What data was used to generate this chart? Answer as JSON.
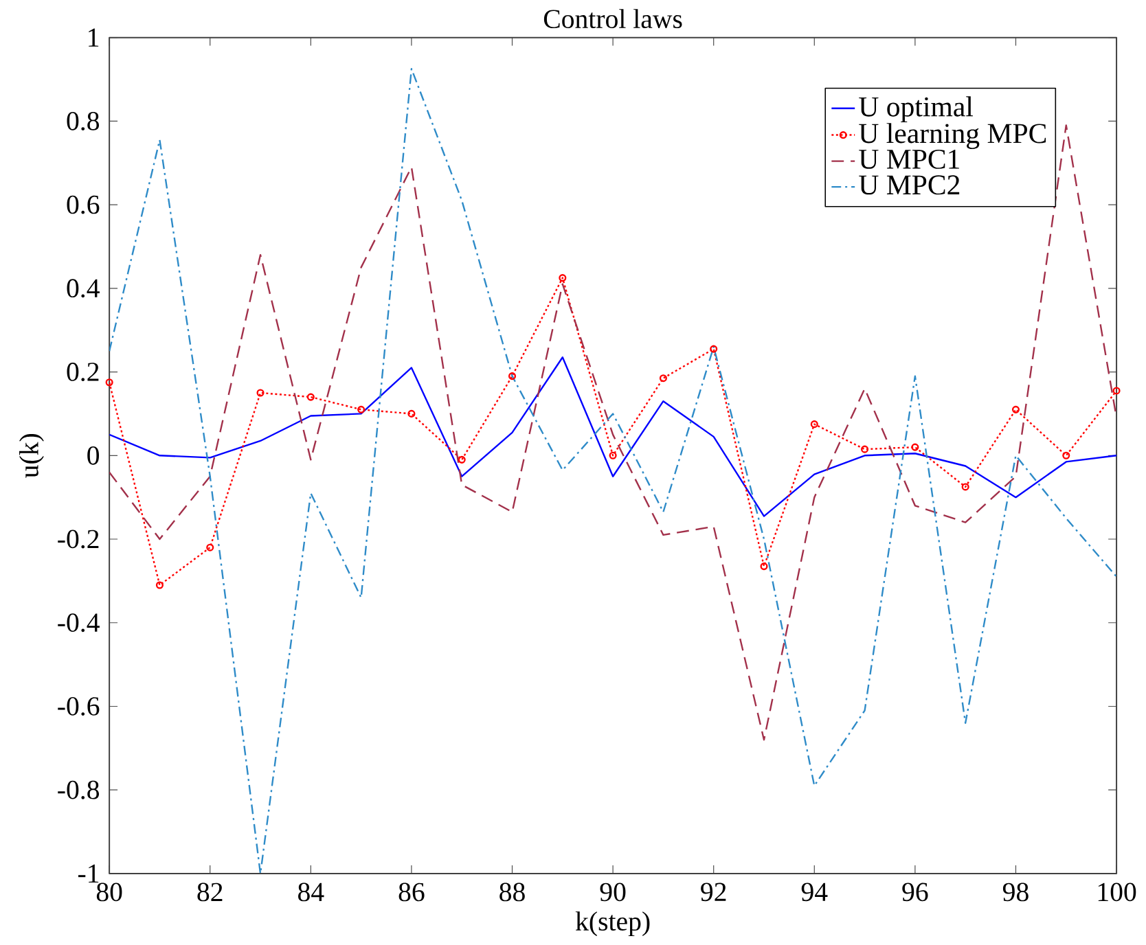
{
  "chart_data": {
    "type": "line",
    "title": "Control laws",
    "xlabel": "k(step)",
    "ylabel": "u(k)",
    "x": [
      80,
      81,
      82,
      83,
      84,
      85,
      86,
      87,
      88,
      89,
      90,
      91,
      92,
      93,
      94,
      95,
      96,
      97,
      98,
      99,
      100
    ],
    "series": [
      {
        "name": "U optimal",
        "color": "#0000ff",
        "line_style": "solid",
        "marker": "none",
        "values": [
          0.05,
          0.0,
          -0.005,
          0.035,
          0.095,
          0.1,
          0.21,
          -0.05,
          0.055,
          0.235,
          -0.05,
          0.13,
          0.045,
          -0.145,
          -0.045,
          0.0,
          0.005,
          -0.025,
          -0.1,
          -0.015,
          0.0
        ]
      },
      {
        "name": "U learning MPC",
        "color": "#ff0000",
        "line_style": "dotted",
        "marker": "circle",
        "values": [
          0.175,
          -0.31,
          -0.22,
          0.15,
          0.14,
          0.11,
          0.1,
          -0.01,
          0.19,
          0.425,
          0.0,
          0.185,
          0.255,
          -0.265,
          0.075,
          0.015,
          0.02,
          -0.075,
          0.11,
          0.0,
          0.155
        ]
      },
      {
        "name": "U MPC1",
        "color": "#a2304a",
        "line_style": "dashed",
        "marker": "none",
        "values": [
          -0.04,
          -0.2,
          -0.05,
          0.48,
          -0.01,
          0.45,
          0.69,
          -0.07,
          -0.135,
          0.41,
          0.05,
          -0.19,
          -0.17,
          -0.68,
          -0.1,
          0.16,
          -0.12,
          -0.16,
          -0.05,
          0.79,
          0.09
        ]
      },
      {
        "name": "U MPC2",
        "color": "#2e8bc8",
        "line_style": "dashdot",
        "marker": "none",
        "values": [
          0.25,
          0.755,
          -0.05,
          -1.0,
          -0.09,
          -0.34,
          0.925,
          0.61,
          0.19,
          -0.035,
          0.1,
          -0.135,
          0.26,
          -0.2,
          -0.79,
          -0.61,
          0.19,
          -0.64,
          0.0,
          -0.15,
          -0.29
        ]
      }
    ],
    "xlim": [
      80,
      100
    ],
    "xticks": [
      80,
      82,
      84,
      86,
      88,
      90,
      92,
      94,
      96,
      98,
      100
    ],
    "ylim": [
      -1,
      1
    ],
    "yticks": [
      -1,
      -0.8,
      -0.6,
      -0.4,
      -0.2,
      0,
      0.2,
      0.4,
      0.6,
      0.8,
      1
    ],
    "grid": false,
    "legend": "top right"
  }
}
